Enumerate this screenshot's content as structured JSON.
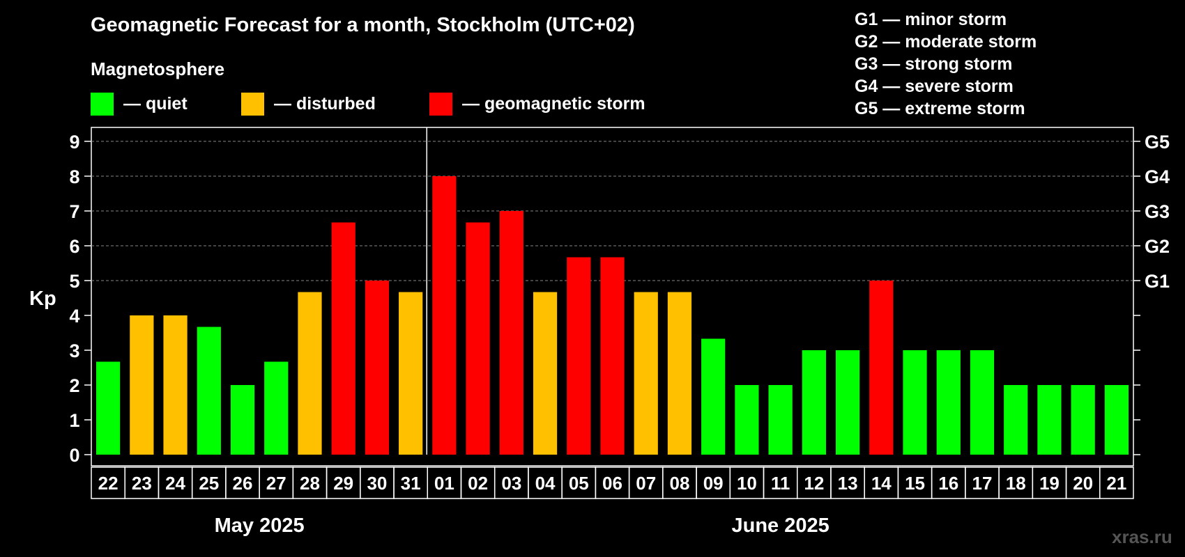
{
  "chart_data": {
    "type": "bar",
    "title": "Geomagnetic Forecast for a month, Stockholm (UTC+02)",
    "subtitle": "Magnetosphere",
    "ylabel": "Kp",
    "ylim": [
      0,
      9
    ],
    "yticks": [
      "0",
      "1",
      "2",
      "3",
      "4",
      "5",
      "6",
      "7",
      "8",
      "9"
    ],
    "right_axis": [
      {
        "kp": 5,
        "label": "G1"
      },
      {
        "kp": 6,
        "label": "G2"
      },
      {
        "kp": 7,
        "label": "G3"
      },
      {
        "kp": 8,
        "label": "G4"
      },
      {
        "kp": 9,
        "label": "G5"
      }
    ],
    "grid": "horizontal dashed at G1–G5",
    "categories": [
      "22",
      "23",
      "24",
      "25",
      "26",
      "27",
      "28",
      "29",
      "30",
      "31",
      "01",
      "02",
      "03",
      "04",
      "05",
      "06",
      "07",
      "08",
      "09",
      "10",
      "11",
      "12",
      "13",
      "14",
      "15",
      "16",
      "17",
      "18",
      "19",
      "20",
      "21"
    ],
    "values": [
      2.67,
      4,
      4,
      3.67,
      2,
      2.67,
      4.67,
      6.67,
      5,
      4.67,
      8,
      6.67,
      7,
      4.67,
      5.67,
      5.67,
      4.67,
      4.67,
      3.33,
      2,
      2,
      3,
      3,
      5,
      3,
      3,
      3,
      2,
      2,
      2,
      2
    ],
    "status": [
      "quiet",
      "disturbed",
      "disturbed",
      "quiet",
      "quiet",
      "quiet",
      "disturbed",
      "storm",
      "storm",
      "disturbed",
      "storm",
      "storm",
      "storm",
      "disturbed",
      "storm",
      "storm",
      "disturbed",
      "disturbed",
      "quiet",
      "quiet",
      "quiet",
      "quiet",
      "quiet",
      "storm",
      "quiet",
      "quiet",
      "quiet",
      "quiet",
      "quiet",
      "quiet",
      "quiet"
    ],
    "months": [
      {
        "label": "May 2025",
        "start": 0,
        "end": 9
      },
      {
        "label": "June 2025",
        "start": 10,
        "end": 30
      }
    ],
    "legend": [
      {
        "key": "quiet",
        "label": "— quiet",
        "color": "#00ff00"
      },
      {
        "key": "disturbed",
        "label": "— disturbed",
        "color": "#ffc000"
      },
      {
        "key": "storm",
        "label": "— geomagnetic storm",
        "color": "#ff0000"
      }
    ],
    "storm_levels": [
      "G1 — minor storm",
      "G2 — moderate storm",
      "G3 — strong storm",
      "G4 — severe storm",
      "G5 — extreme storm"
    ]
  },
  "watermark": "xras.ru"
}
